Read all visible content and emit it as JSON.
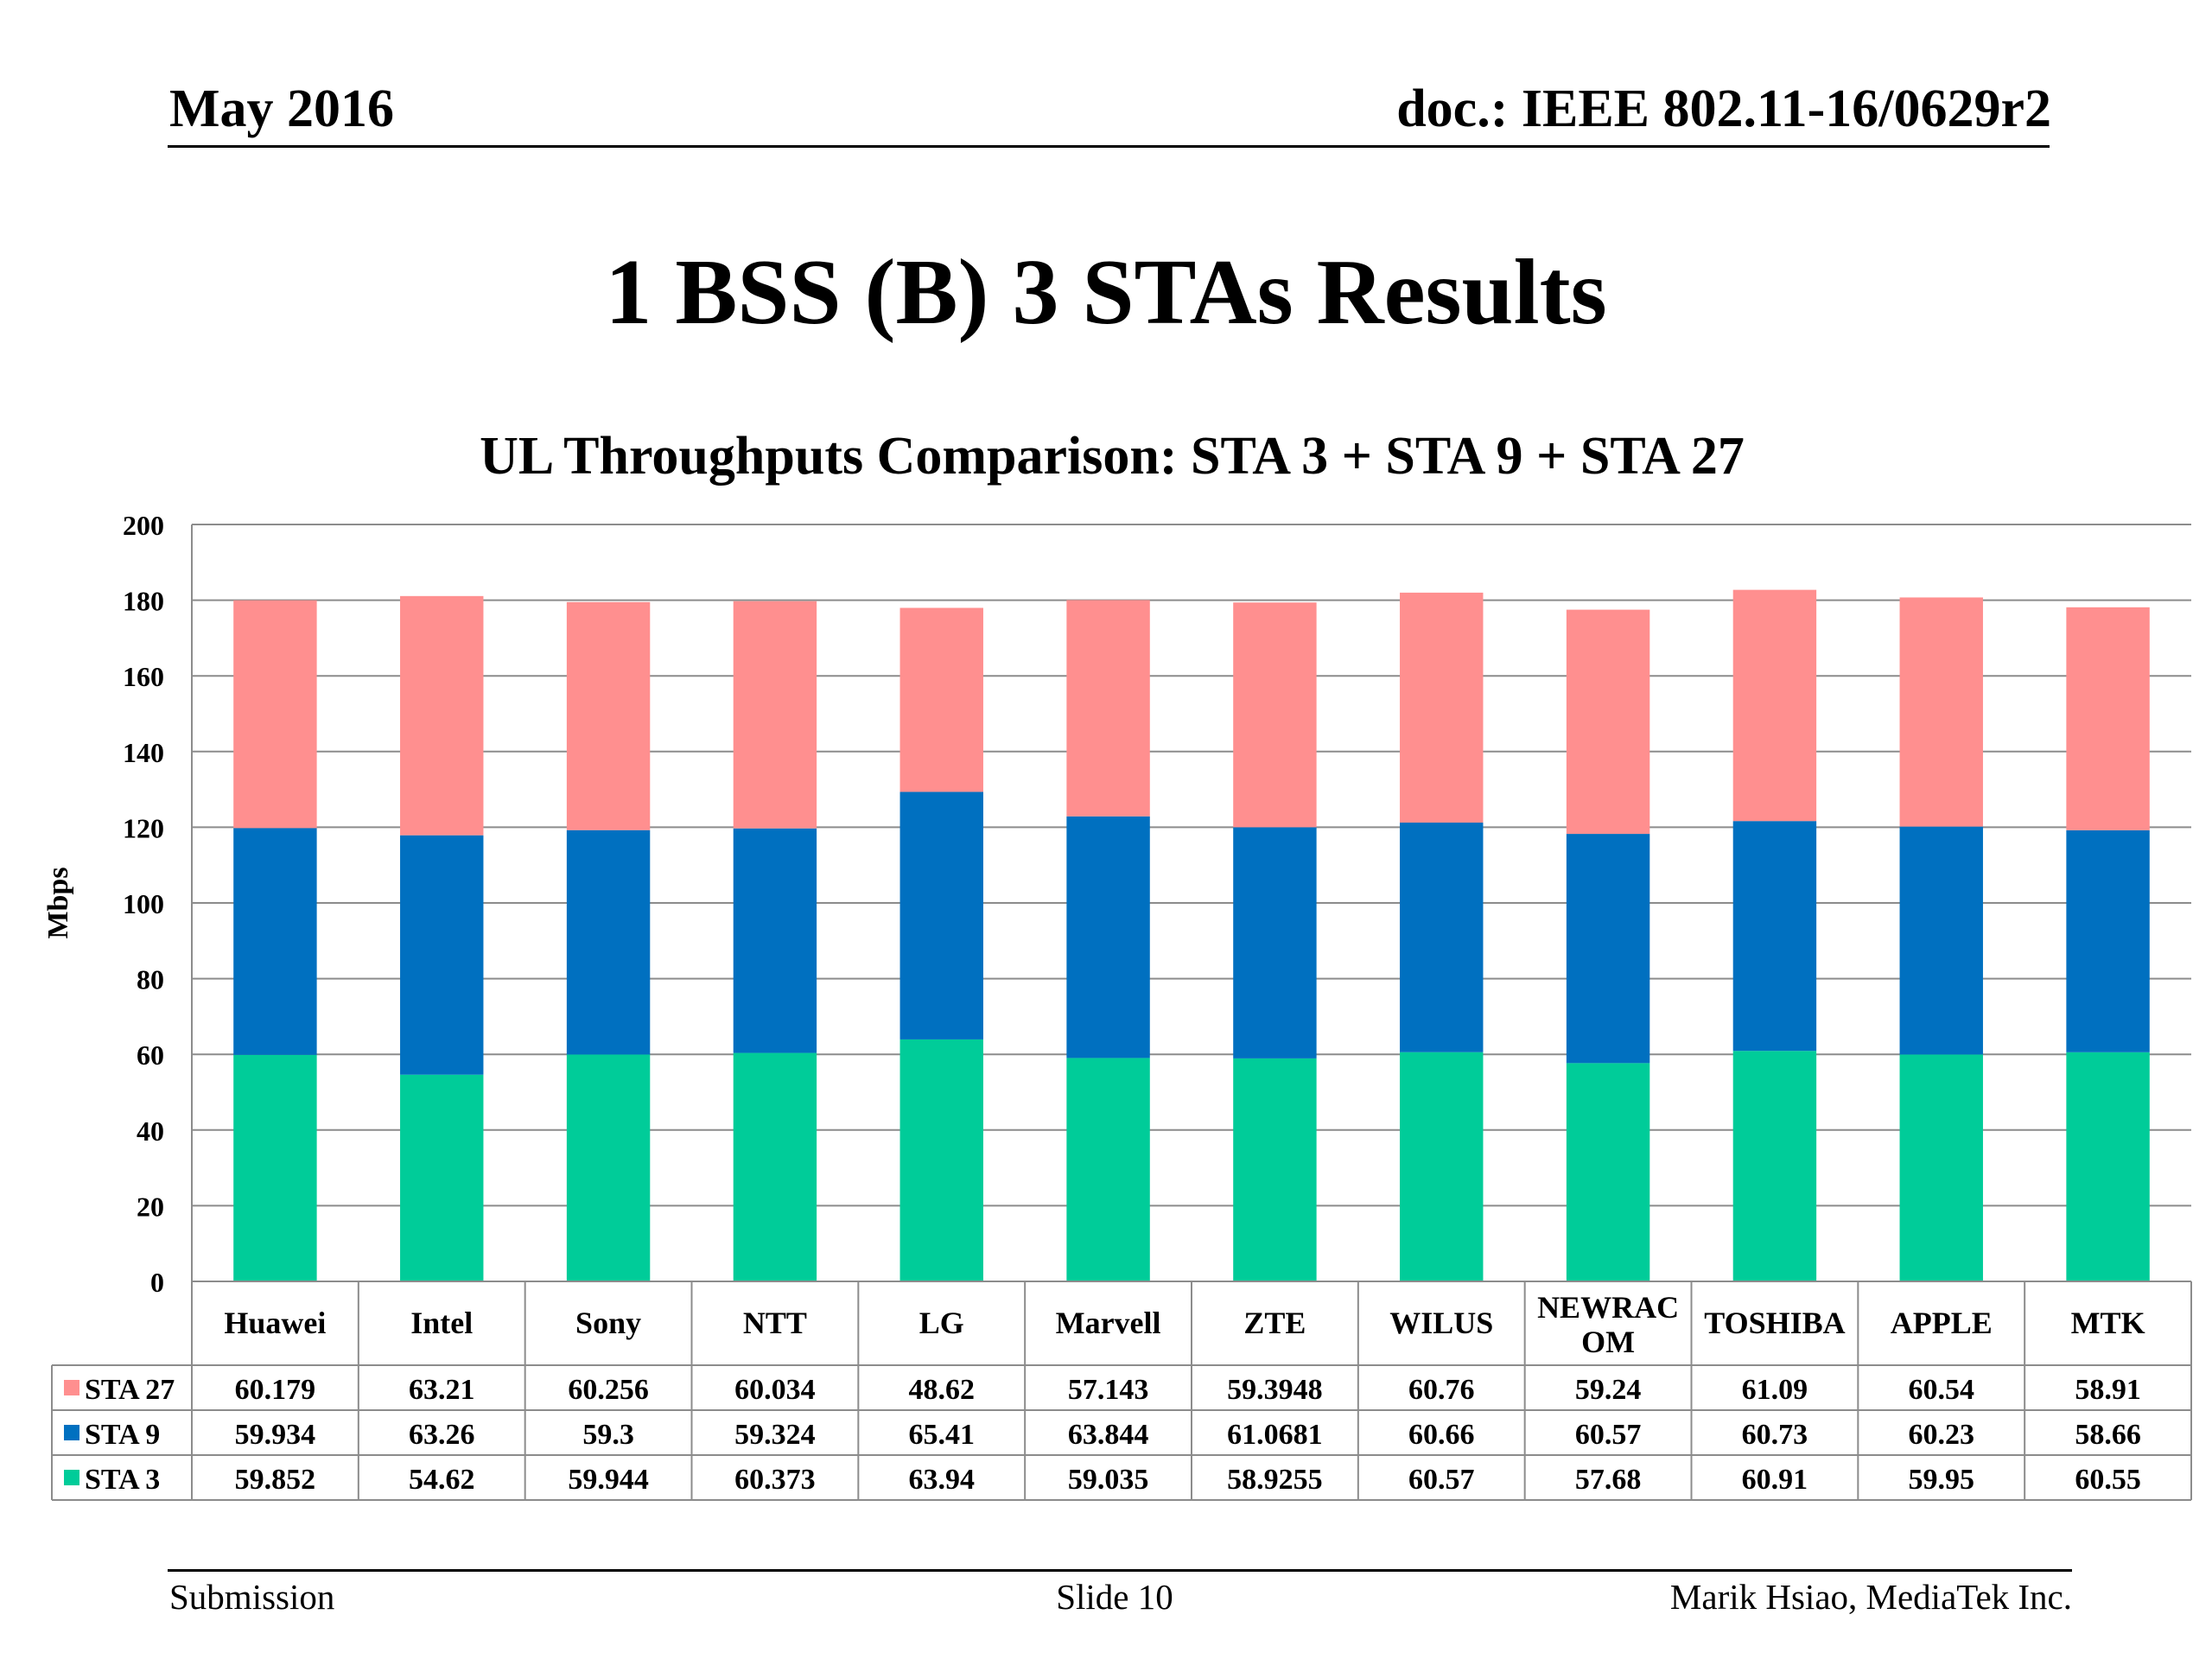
{
  "header": {
    "date": "May 2016",
    "doc": "doc.: IEEE 802.11-16/0629r2"
  },
  "slide_title": "1 BSS (B) 3 STAs Results",
  "chart_data": {
    "type": "bar",
    "stacked": true,
    "title": "UL Throughputs Comparison:  STA 3 + STA 9 + STA 27",
    "ylabel": "Mbps",
    "xlabel": "",
    "ylim": [
      0,
      200
    ],
    "yticks": [
      0,
      20,
      40,
      60,
      80,
      100,
      120,
      140,
      160,
      180,
      200
    ],
    "grid": true,
    "legend": "data-table",
    "categories": [
      "Huawei",
      "Intel",
      "Sony",
      "NTT",
      "LG",
      "Marvell",
      "ZTE",
      "WILUS",
      "NEWRACOM",
      "TOSHIBA",
      "APPLE",
      "MTK"
    ],
    "category_display": [
      "Huawei",
      "Intel",
      "Sony",
      "NTT",
      "LG",
      "Marvell",
      "ZTE",
      "WILUS",
      "NEWRAC\nOM",
      "TOSHIBA",
      "APPLE",
      "MTK"
    ],
    "series": [
      {
        "name": "STA 3",
        "color": "#00CC99",
        "values": [
          59.852,
          54.62,
          59.944,
          60.373,
          63.94,
          59.035,
          58.9255,
          60.57,
          57.68,
          60.91,
          59.95,
          60.55
        ],
        "labels": [
          "59.852",
          "54.62",
          "59.944",
          "60.373",
          "63.94",
          "59.035",
          "58.9255",
          "60.57",
          "57.68",
          "60.91",
          "59.95",
          "60.55"
        ]
      },
      {
        "name": "STA 9",
        "color": "#0070C0",
        "values": [
          59.934,
          63.26,
          59.3,
          59.324,
          65.41,
          63.844,
          61.0681,
          60.66,
          60.57,
          60.73,
          60.23,
          58.66
        ],
        "labels": [
          "59.934",
          "63.26",
          "59.3",
          "59.324",
          "65.41",
          "63.844",
          "61.0681",
          "60.66",
          "60.57",
          "60.73",
          "60.23",
          "58.66"
        ]
      },
      {
        "name": "STA 27",
        "color": "#FF8F8F",
        "values": [
          60.179,
          63.21,
          60.256,
          60.034,
          48.62,
          57.143,
          59.3948,
          60.76,
          59.24,
          61.09,
          60.54,
          58.91
        ],
        "labels": [
          "60.179",
          "63.21",
          "60.256",
          "60.034",
          "48.62",
          "57.143",
          "59.3948",
          "60.76",
          "59.24",
          "61.09",
          "60.54",
          "58.91"
        ]
      }
    ],
    "table_row_order": [
      "STA 27",
      "STA 9",
      "STA 3"
    ]
  },
  "footer": {
    "left": "Submission",
    "center": "Slide 10",
    "right": "Marik Hsiao, MediaTek Inc."
  }
}
